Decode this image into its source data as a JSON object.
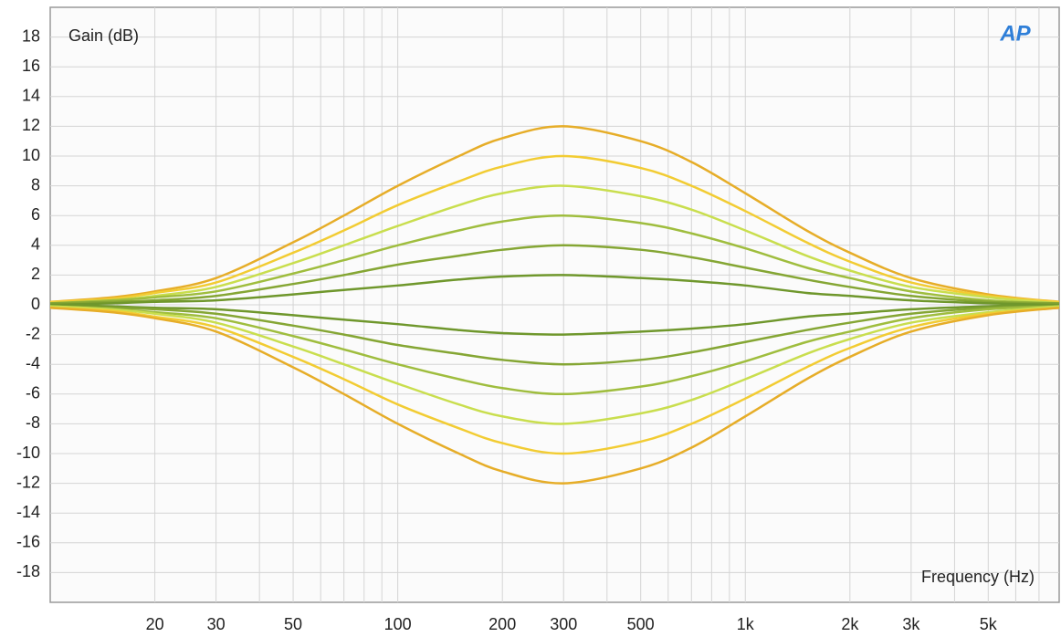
{
  "chart_data": {
    "type": "line",
    "ylabel": "Gain (dB)",
    "xlabel": "Frequency (Hz)",
    "logo": "AP",
    "log_x": true,
    "grid": true,
    "x": [
      10,
      15,
      20,
      30,
      50,
      70,
      100,
      150,
      200,
      300,
      500,
      700,
      1000,
      1500,
      2000,
      3000,
      5000,
      8000
    ],
    "series": [
      {
        "color": "#e6ad28",
        "values": [
          0.2,
          0.5,
          0.9,
          1.8,
          4.2,
          6,
          8,
          10,
          11.2,
          12,
          11,
          9.6,
          7.5,
          5,
          3.5,
          1.8,
          0.7,
          0.2
        ]
      },
      {
        "color": "#f2cc33",
        "values": [
          0.2,
          0.4,
          0.8,
          1.5,
          3.5,
          5,
          6.7,
          8.3,
          9.3,
          10,
          9.2,
          8,
          6.3,
          4.2,
          2.9,
          1.5,
          0.6,
          0.2
        ]
      },
      {
        "color": "#c9de4e",
        "values": [
          0.1,
          0.3,
          0.6,
          1.2,
          2.8,
          4,
          5.3,
          6.7,
          7.5,
          8,
          7.3,
          6.4,
          5,
          3.3,
          2.3,
          1.2,
          0.5,
          0.1
        ]
      },
      {
        "color": "#9fbd3e",
        "values": [
          0.1,
          0.3,
          0.5,
          0.9,
          2.1,
          3,
          4,
          5,
          5.6,
          6,
          5.5,
          4.8,
          3.8,
          2.5,
          1.8,
          0.9,
          0.3,
          0.1
        ]
      },
      {
        "color": "#85a634",
        "values": [
          0.1,
          0.2,
          0.3,
          0.6,
          1.4,
          2,
          2.7,
          3.3,
          3.7,
          4,
          3.7,
          3.2,
          2.5,
          1.7,
          1.2,
          0.6,
          0.2,
          0.1
        ]
      },
      {
        "color": "#6f972c",
        "values": [
          0,
          0.1,
          0.2,
          0.3,
          0.7,
          1,
          1.3,
          1.7,
          1.9,
          2,
          1.8,
          1.6,
          1.3,
          0.8,
          0.6,
          0.3,
          0.1,
          0
        ]
      },
      {
        "color": "#6f972c",
        "values": [
          0,
          -0.1,
          -0.2,
          -0.3,
          -0.7,
          -1,
          -1.3,
          -1.7,
          -1.9,
          -2,
          -1.8,
          -1.6,
          -1.3,
          -0.8,
          -0.6,
          -0.3,
          -0.1,
          0
        ]
      },
      {
        "color": "#85a634",
        "values": [
          -0.1,
          -0.2,
          -0.3,
          -0.6,
          -1.4,
          -2,
          -2.7,
          -3.3,
          -3.7,
          -4,
          -3.7,
          -3.2,
          -2.5,
          -1.7,
          -1.2,
          -0.6,
          -0.2,
          -0.1
        ]
      },
      {
        "color": "#9fbd3e",
        "values": [
          -0.1,
          -0.3,
          -0.5,
          -0.9,
          -2.1,
          -3,
          -4,
          -5,
          -5.6,
          -6,
          -5.5,
          -4.8,
          -3.8,
          -2.5,
          -1.8,
          -0.9,
          -0.3,
          -0.1
        ]
      },
      {
        "color": "#c9de4e",
        "values": [
          -0.1,
          -0.3,
          -0.6,
          -1.2,
          -2.8,
          -4,
          -5.3,
          -6.7,
          -7.5,
          -8,
          -7.3,
          -6.4,
          -5,
          -3.3,
          -2.3,
          -1.2,
          -0.5,
          -0.1
        ]
      },
      {
        "color": "#f2cc33",
        "values": [
          -0.2,
          -0.4,
          -0.8,
          -1.5,
          -3.5,
          -5,
          -6.7,
          -8.3,
          -9.3,
          -10,
          -9.2,
          -8,
          -6.3,
          -4.2,
          -2.9,
          -1.5,
          -0.6,
          -0.2
        ]
      },
      {
        "color": "#e6ad28",
        "values": [
          -0.2,
          -0.5,
          -0.9,
          -1.8,
          -4.2,
          -6,
          -8,
          -10,
          -11.2,
          -12,
          -11,
          -9.6,
          -7.5,
          -5,
          -3.5,
          -1.8,
          -0.7,
          -0.2
        ]
      }
    ],
    "xlim": [
      10,
      8000
    ],
    "xticks": [
      20,
      30,
      50,
      100,
      200,
      300,
      500,
      {
        "value": 1000,
        "label": "1k"
      },
      {
        "value": 2000,
        "label": "2k"
      },
      {
        "value": 3000,
        "label": "3k"
      },
      {
        "value": 5000,
        "label": "5k"
      }
    ],
    "xgrid_minor": [
      40,
      60,
      70,
      80,
      90,
      400,
      600,
      700,
      800,
      900,
      4000,
      6000,
      7000
    ],
    "ylim": [
      -20,
      20
    ],
    "yticks": [
      18,
      16,
      14,
      12,
      10,
      8,
      6,
      4,
      2,
      0,
      -2,
      -4,
      -6,
      -8,
      -10,
      -12,
      -14,
      -16,
      -18
    ]
  }
}
